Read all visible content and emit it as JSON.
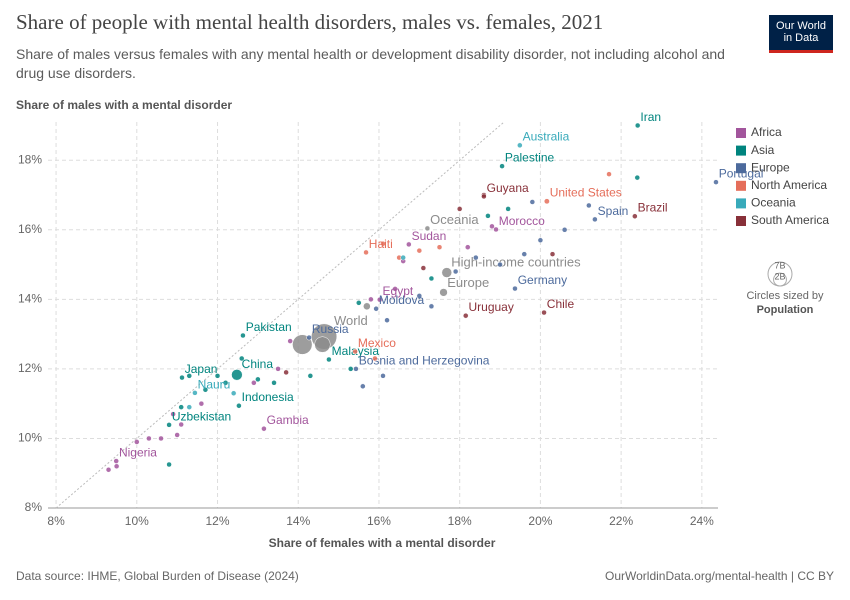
{
  "chart_data": {
    "type": "scatter",
    "title": "Share of people with mental health disorders, males vs. females, 2021",
    "subtitle": "Share of males versus females with any mental health or development disability disorder, not including alcohol and drug use disorders.",
    "y_label": "Share of males with a mental disorder",
    "x_label": "Share of females with a mental disorder",
    "source": "Data source: IHME, Global Burden of Disease (2024)",
    "url": "OurWorldinData.org/mental-health | CC BY",
    "logo": "Our World in Data",
    "size_legend_title": "Circles sized by",
    "size_legend_measure": "Population",
    "size_legend": [
      {
        "value": 7,
        "label": "7B"
      },
      {
        "value": 2,
        "label": "2B"
      }
    ],
    "xlim": [
      7.8,
      24.4
    ],
    "ylim": [
      8,
      19.1
    ],
    "xticks": [
      {
        "value": 8,
        "label": "8%"
      },
      {
        "value": 10,
        "label": "10%"
      },
      {
        "value": 12,
        "label": "12%"
      },
      {
        "value": 14,
        "label": "14%"
      },
      {
        "value": 16,
        "label": "16%"
      },
      {
        "value": 18,
        "label": "18%"
      },
      {
        "value": 20,
        "label": "20%"
      },
      {
        "value": 22,
        "label": "22%"
      },
      {
        "value": 24,
        "label": "24%"
      }
    ],
    "yticks": [
      {
        "value": 8,
        "label": "8%"
      },
      {
        "value": 10,
        "label": "10%"
      },
      {
        "value": 12,
        "label": "12%"
      },
      {
        "value": 14,
        "label": "14%"
      },
      {
        "value": 16,
        "label": "16%"
      },
      {
        "value": 18,
        "label": "18%"
      }
    ],
    "grid": true,
    "series": [
      {
        "name": "Africa",
        "color": "#a2559c",
        "labels": [
          "Nigeria",
          "Gambia",
          "Egypt",
          "Sudan",
          "Morocco",
          null,
          null,
          null,
          null,
          null,
          null,
          null,
          null,
          null,
          null,
          null,
          null,
          null,
          null,
          null,
          null,
          null
        ],
        "x": [
          9.49,
          13.15,
          16.02,
          16.74,
          18.9,
          9.3,
          9.5,
          10.0,
          10.3,
          10.6,
          11.0,
          11.1,
          11.6,
          12.9,
          13.5,
          15.8,
          16.4,
          16.6,
          18.2,
          18.8,
          13.8,
          10.9
        ],
        "values": [
          9.35,
          10.28,
          13.99,
          15.58,
          16.01,
          9.1,
          9.2,
          9.9,
          10.0,
          10.0,
          10.1,
          10.4,
          11.0,
          11.6,
          12.0,
          14.0,
          14.3,
          15.1,
          15.5,
          16.1,
          12.8,
          10.7
        ],
        "size": [
          0.22,
          0.003,
          0.11,
          0.05,
          0.04,
          0.02,
          0.03,
          0.02,
          0.02,
          0.03,
          0.02,
          0.03,
          0.02,
          0.02,
          0.02,
          0.01,
          0.01,
          0.02,
          0.01,
          0.01,
          0.02,
          0.03
        ]
      },
      {
        "name": "Asia",
        "color": "#00847e",
        "labels": [
          "Iran",
          "Palestine",
          "Pakistan",
          "China",
          "Japan",
          "Indonesia",
          "Uzbekistan",
          "Malaysia",
          null,
          null,
          null,
          null,
          null,
          null,
          null,
          null,
          null,
          null,
          null,
          null,
          null,
          null,
          null,
          null
        ],
        "x": [
          22.41,
          19.05,
          12.63,
          12.48,
          11.12,
          12.53,
          10.8,
          14.76,
          10.8,
          11.3,
          11.7,
          12.2,
          12.6,
          13.0,
          13.4,
          14.3,
          15.3,
          15.5,
          17.3,
          18.7,
          19.2,
          22.4,
          12.0,
          11.1
        ],
        "values": [
          19.0,
          17.83,
          12.96,
          11.83,
          11.75,
          10.94,
          10.39,
          12.27,
          9.25,
          11.8,
          11.4,
          11.6,
          12.3,
          11.7,
          11.6,
          11.8,
          12.0,
          13.9,
          14.6,
          16.4,
          16.6,
          17.5,
          11.8,
          10.9
        ],
        "size": [
          0.09,
          0.005,
          0.24,
          1.42,
          0.12,
          0.27,
          0.035,
          0.034,
          0.01,
          0.02,
          0.03,
          0.02,
          0.03,
          0.02,
          0.03,
          0.02,
          0.01,
          0.01,
          0.01,
          0.01,
          0.01,
          0.01,
          0.03,
          0.02
        ]
      },
      {
        "name": "Europe",
        "color": "#4c6a9c",
        "labels": [
          "Portugal",
          "Spain",
          "Germany",
          "Russia",
          "Moldova",
          "Bosnia and Herzegovina",
          null,
          null,
          null,
          null,
          null,
          null,
          null,
          null,
          null,
          null,
          null,
          null,
          null
        ],
        "x": [
          24.35,
          21.35,
          19.37,
          14.27,
          15.93,
          15.43,
          15.6,
          16.1,
          16.2,
          17.0,
          17.9,
          18.4,
          19.0,
          19.6,
          20.0,
          20.6,
          21.2,
          19.8,
          17.3
        ],
        "values": [
          17.37,
          16.3,
          14.31,
          12.9,
          13.73,
          12.0,
          11.5,
          11.8,
          13.4,
          14.1,
          14.8,
          15.2,
          15.0,
          15.3,
          15.7,
          16.0,
          16.7,
          16.8,
          13.8
        ],
        "size": [
          0.01,
          0.048,
          0.083,
          0.144,
          0.003,
          0.003,
          0.01,
          0.01,
          0.01,
          0.01,
          0.01,
          0.01,
          0.01,
          0.01,
          0.01,
          0.01,
          0.01,
          0.01,
          0.01
        ]
      },
      {
        "name": "North America",
        "color": "#e56e5a",
        "labels": [
          "United States",
          "Mexico",
          "Haiti",
          null,
          null,
          null,
          null,
          null,
          null
        ],
        "x": [
          20.16,
          15.41,
          15.68,
          16.1,
          16.5,
          17.5,
          21.7,
          15.9,
          17.0
        ],
        "values": [
          16.82,
          12.5,
          15.35,
          15.6,
          15.2,
          15.5,
          17.6,
          12.3,
          15.4
        ],
        "size": [
          0.34,
          0.13,
          0.012,
          0.005,
          0.005,
          0.005,
          0.005,
          0.005,
          0.005
        ]
      },
      {
        "name": "Oceania",
        "color": "#38aaba",
        "labels": [
          "Australia",
          "Nauru",
          null,
          null,
          null
        ],
        "x": [
          19.49,
          11.44,
          16.6,
          11.3,
          12.4
        ],
        "values": [
          18.43,
          11.31,
          15.2,
          10.9,
          11.3
        ],
        "size": [
          0.026,
          0.0001,
          0.005,
          0.005,
          0.005
        ]
      },
      {
        "name": "South America",
        "color": "#883039",
        "labels": [
          "Guyana",
          "Brazil",
          "Uruguay",
          "Chile",
          null,
          null,
          null,
          null,
          null
        ],
        "x": [
          18.6,
          22.34,
          18.15,
          20.09,
          18.6,
          17.1,
          18.0,
          20.3,
          13.7
        ],
        "values": [
          16.96,
          16.39,
          13.53,
          13.62,
          17.0,
          14.9,
          16.6,
          15.3,
          11.9
        ],
        "size": [
          0.001,
          0.21,
          0.003,
          0.019,
          0.005,
          0.01,
          0.01,
          0.01,
          0.01
        ]
      }
    ],
    "aggregates": {
      "color": "#8c8c8c",
      "labels": [
        "World",
        "High-income countries",
        "Europe",
        "Oceania",
        null,
        null,
        null
      ],
      "x": [
        14.64,
        17.68,
        17.6,
        17.2,
        14.1,
        14.6,
        15.7
      ],
      "values": [
        12.93,
        14.77,
        14.2,
        16.04,
        12.7,
        12.7,
        13.8
      ],
      "size": [
        7.9,
        1.2,
        0.74,
        0.045,
        4.7,
        3.0,
        0.6
      ]
    }
  }
}
